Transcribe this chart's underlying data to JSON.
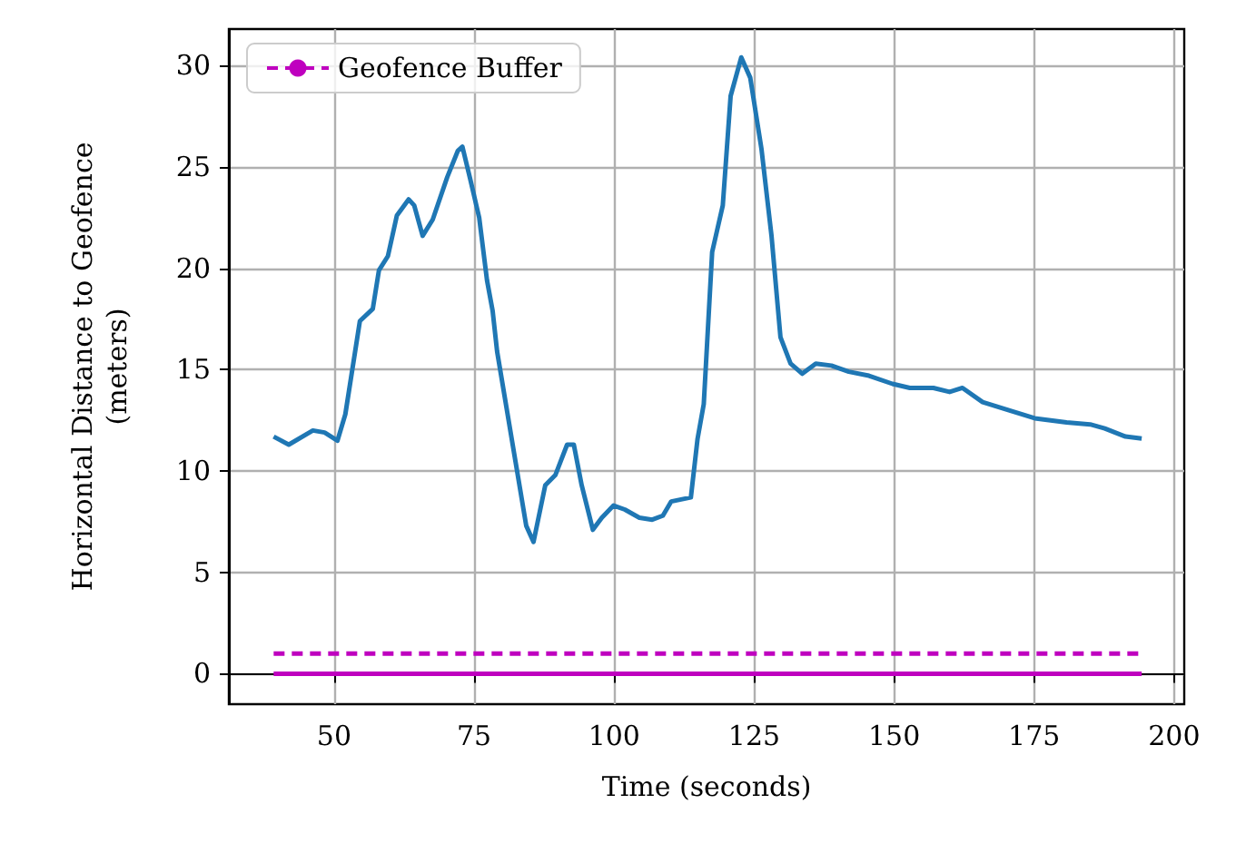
{
  "chart_data": {
    "type": "line",
    "xlabel": "Time (seconds)",
    "ylabel": "Horizontal Distance to Geofence\n(meters)",
    "xlim": [
      31.2,
      201.8
    ],
    "ylim": [
      -1.5,
      31.8
    ],
    "xticks": [
      50,
      75,
      100,
      125,
      150,
      175,
      200
    ],
    "yticks": [
      0,
      5,
      10,
      15,
      20,
      25,
      30
    ],
    "grid": true,
    "legend": "top left",
    "line_style": "solid",
    "marker": "none",
    "series": [
      {
        "color": "#1f77b4",
        "x": [
          39.2,
          41.9,
          46.2,
          48.3,
          50.6,
          52,
          54.6,
          56.9,
          58,
          59.6,
          61.2,
          63.3,
          64.3,
          65.8,
          67.6,
          70.2,
          72.1,
          72.9,
          74.3,
          75.9,
          77.3,
          78.3,
          79.1,
          81.7,
          84.3,
          85.6,
          87.7,
          89.5,
          91.6,
          92.8,
          94.2,
          96.2,
          97.8,
          99.9,
          101.9,
          104.5,
          106.8,
          108.7,
          110.2,
          113.7,
          114.9,
          116,
          117.5,
          119.4,
          120.8,
          122.7,
          124.3,
          126.3,
          128.1,
          129.7,
          131.5,
          133.6,
          136,
          138.8,
          141.9,
          145.5,
          149.7,
          152.8,
          157,
          159.9,
          162.2,
          165.8,
          170.5,
          175.1,
          180.8,
          185,
          187.6,
          191.3,
          194.2
        ],
        "values": [
          11.7,
          11.3,
          12,
          11.9,
          11.5,
          12.8,
          17.4,
          18,
          19.9,
          20.6,
          22.6,
          23.4,
          23.1,
          21.6,
          22.4,
          24.5,
          25.8,
          26,
          24.4,
          22.5,
          19.4,
          17.9,
          15.9,
          11.6,
          7.3,
          6.5,
          9.3,
          9.8,
          11.3,
          11.3,
          9.3,
          7.1,
          7.7,
          8.3,
          8.1,
          7.7,
          7.6,
          7.8,
          8.5,
          8.7,
          11.6,
          13.3,
          20.8,
          23.1,
          28.5,
          30.4,
          29.4,
          25.9,
          21.6,
          16.6,
          15.3,
          14.8,
          15.3,
          15.2,
          14.9,
          14.7,
          14.3,
          14.1,
          14.1,
          13.9,
          14.1,
          13.4,
          13,
          12.6,
          12.4,
          12.3,
          12.1,
          11.7,
          11.6
        ]
      },
      {
        "color": "#bf00bf",
        "x": [
          39.2,
          194.2
        ],
        "values": [
          0,
          0
        ]
      },
      {
        "name": "Geofence Buffer",
        "color": "#bf00bf",
        "line_style": "dashed",
        "x": [
          39.2,
          194.2
        ],
        "values": [
          1,
          1
        ]
      }
    ]
  }
}
